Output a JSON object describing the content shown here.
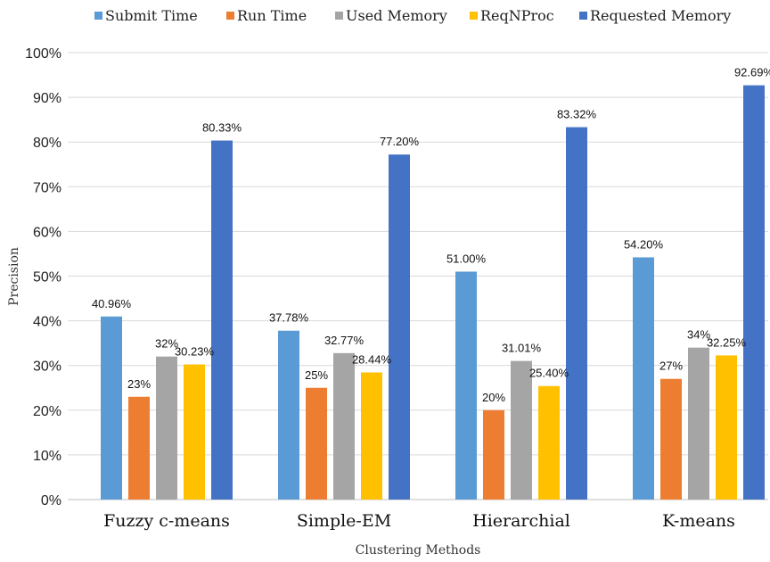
{
  "chart_data": {
    "type": "bar",
    "title": "",
    "xlabel": "Clustering Methods",
    "ylabel": "Precision",
    "ylim": [
      0,
      100
    ],
    "yticks": [
      "0%",
      "10%",
      "20%",
      "30%",
      "40%",
      "50%",
      "60%",
      "70%",
      "80%",
      "90%",
      "100%"
    ],
    "grid": true,
    "legend_position": "top",
    "categories": [
      "Fuzzy c-means",
      "Simple-EM",
      "Hierarchial",
      "K-means"
    ],
    "series": [
      {
        "name": "Submit Time",
        "color": "#5b9bd5",
        "values": [
          40.96,
          37.78,
          51.0,
          54.2
        ],
        "labels": [
          "40.96%",
          "37.78%",
          "51.00%",
          "54.20%"
        ]
      },
      {
        "name": "Run Time",
        "color": "#ed7d31",
        "values": [
          23,
          25,
          20,
          27
        ],
        "labels": [
          "23%",
          "25%",
          "20%",
          "27%"
        ]
      },
      {
        "name": "Used Memory",
        "color": "#a5a5a5",
        "values": [
          32,
          32.77,
          31.01,
          34
        ],
        "labels": [
          "32%",
          "32.77%",
          "31.01%",
          "34%"
        ]
      },
      {
        "name": "ReqNProc",
        "color": "#ffc000",
        "values": [
          30.23,
          28.44,
          25.4,
          32.25
        ],
        "labels": [
          "30.23%",
          "28.44%",
          "25.40%",
          "32.25%"
        ]
      },
      {
        "name": "Requested Memory",
        "color": "#4472c4",
        "values": [
          80.33,
          77.2,
          83.32,
          92.69
        ],
        "labels": [
          "80.33%",
          "77.20%",
          "83.32%",
          "92.69%"
        ]
      }
    ]
  }
}
